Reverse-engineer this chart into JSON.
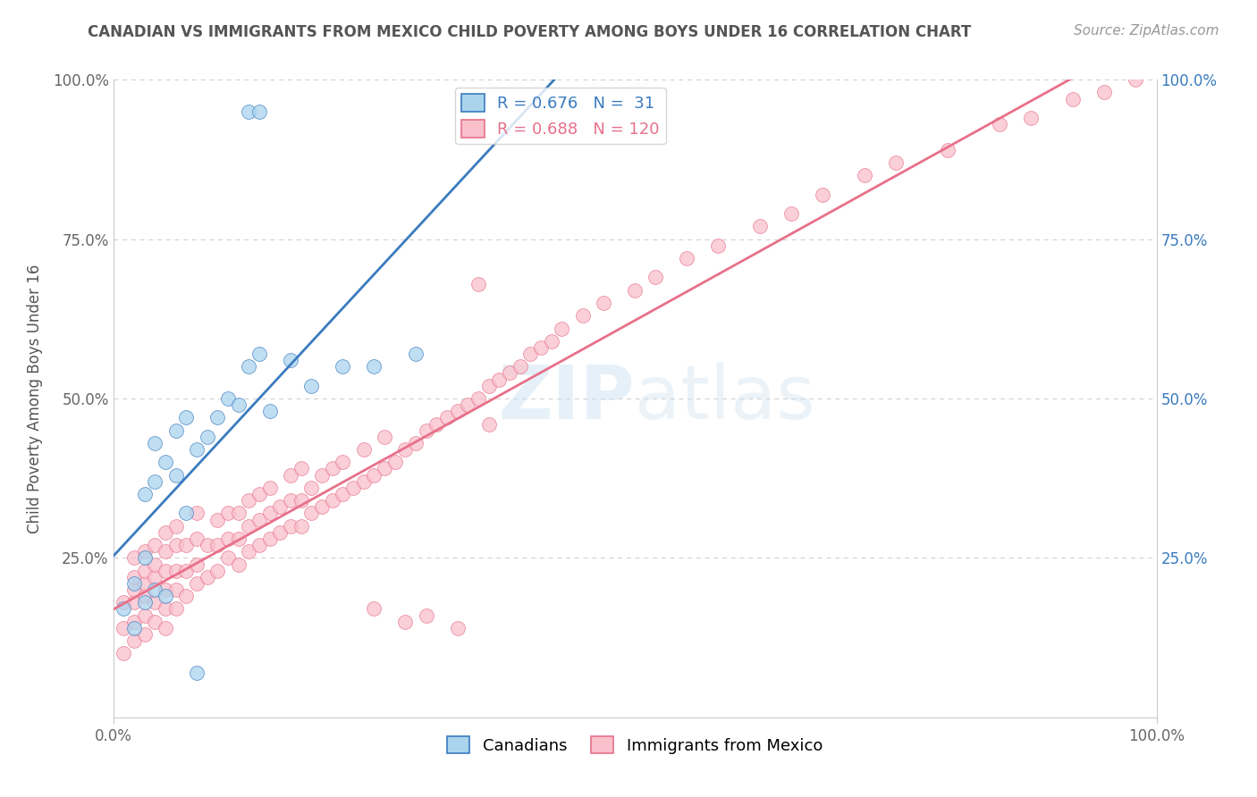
{
  "title": "CANADIAN VS IMMIGRANTS FROM MEXICO CHILD POVERTY AMONG BOYS UNDER 16 CORRELATION CHART",
  "source": "Source: ZipAtlas.com",
  "ylabel": "Child Poverty Among Boys Under 16",
  "watermark": "ZIPAtlas",
  "xlim": [
    0,
    1.0
  ],
  "ylim": [
    0,
    1.0
  ],
  "legend_r_canadian": "0.676",
  "legend_n_canadian": "31",
  "legend_r_mexico": "0.688",
  "legend_n_mexico": "120",
  "canadian_color": "#aad4ee",
  "mexico_color": "#f9c0cb",
  "canadian_line_color": "#3a7bbf",
  "mexico_line_color": "#e8708a",
  "background_color": "#ffffff",
  "grid_color": "#cccccc",
  "canadians_x": [
    0.01,
    0.02,
    0.02,
    0.03,
    0.03,
    0.03,
    0.04,
    0.04,
    0.04,
    0.05,
    0.05,
    0.06,
    0.06,
    0.07,
    0.07,
    0.08,
    0.09,
    0.1,
    0.11,
    0.12,
    0.13,
    0.14,
    0.15,
    0.17,
    0.19,
    0.22,
    0.25,
    0.29,
    0.13,
    0.14,
    0.08
  ],
  "canadians_y": [
    0.17,
    0.14,
    0.21,
    0.18,
    0.25,
    0.35,
    0.2,
    0.37,
    0.43,
    0.19,
    0.4,
    0.38,
    0.45,
    0.32,
    0.47,
    0.42,
    0.44,
    0.47,
    0.5,
    0.49,
    0.95,
    0.95,
    0.48,
    0.56,
    0.52,
    0.55,
    0.55,
    0.57,
    0.55,
    0.57,
    0.07
  ],
  "mexico_x": [
    0.01,
    0.01,
    0.01,
    0.02,
    0.02,
    0.02,
    0.02,
    0.02,
    0.02,
    0.03,
    0.03,
    0.03,
    0.03,
    0.03,
    0.03,
    0.04,
    0.04,
    0.04,
    0.04,
    0.04,
    0.05,
    0.05,
    0.05,
    0.05,
    0.05,
    0.05,
    0.06,
    0.06,
    0.06,
    0.06,
    0.06,
    0.07,
    0.07,
    0.07,
    0.08,
    0.08,
    0.08,
    0.08,
    0.09,
    0.09,
    0.1,
    0.1,
    0.1,
    0.11,
    0.11,
    0.11,
    0.12,
    0.12,
    0.12,
    0.13,
    0.13,
    0.13,
    0.14,
    0.14,
    0.14,
    0.15,
    0.15,
    0.15,
    0.16,
    0.16,
    0.17,
    0.17,
    0.17,
    0.18,
    0.18,
    0.18,
    0.19,
    0.19,
    0.2,
    0.2,
    0.21,
    0.21,
    0.22,
    0.22,
    0.23,
    0.24,
    0.24,
    0.25,
    0.26,
    0.26,
    0.27,
    0.28,
    0.29,
    0.3,
    0.31,
    0.32,
    0.33,
    0.34,
    0.35,
    0.36,
    0.37,
    0.38,
    0.39,
    0.4,
    0.41,
    0.42,
    0.43,
    0.45,
    0.47,
    0.5,
    0.52,
    0.55,
    0.58,
    0.62,
    0.65,
    0.68,
    0.72,
    0.75,
    0.8,
    0.85,
    0.88,
    0.92,
    0.95,
    0.98,
    0.35,
    0.36,
    0.3,
    0.25,
    0.28,
    0.33
  ],
  "mexico_y": [
    0.1,
    0.14,
    0.18,
    0.12,
    0.15,
    0.18,
    0.2,
    0.22,
    0.25,
    0.13,
    0.16,
    0.19,
    0.21,
    0.23,
    0.26,
    0.15,
    0.18,
    0.22,
    0.24,
    0.27,
    0.14,
    0.17,
    0.2,
    0.23,
    0.26,
    0.29,
    0.17,
    0.2,
    0.23,
    0.27,
    0.3,
    0.19,
    0.23,
    0.27,
    0.21,
    0.24,
    0.28,
    0.32,
    0.22,
    0.27,
    0.23,
    0.27,
    0.31,
    0.25,
    0.28,
    0.32,
    0.24,
    0.28,
    0.32,
    0.26,
    0.3,
    0.34,
    0.27,
    0.31,
    0.35,
    0.28,
    0.32,
    0.36,
    0.29,
    0.33,
    0.3,
    0.34,
    0.38,
    0.3,
    0.34,
    0.39,
    0.32,
    0.36,
    0.33,
    0.38,
    0.34,
    0.39,
    0.35,
    0.4,
    0.36,
    0.37,
    0.42,
    0.38,
    0.39,
    0.44,
    0.4,
    0.42,
    0.43,
    0.45,
    0.46,
    0.47,
    0.48,
    0.49,
    0.5,
    0.52,
    0.53,
    0.54,
    0.55,
    0.57,
    0.58,
    0.59,
    0.61,
    0.63,
    0.65,
    0.67,
    0.69,
    0.72,
    0.74,
    0.77,
    0.79,
    0.82,
    0.85,
    0.87,
    0.89,
    0.93,
    0.94,
    0.97,
    0.98,
    1.0,
    0.68,
    0.46,
    0.16,
    0.17,
    0.15,
    0.14
  ],
  "title_fontsize": 12,
  "source_fontsize": 11,
  "axis_fontsize": 12,
  "ylabel_fontsize": 12,
  "legend_fontsize": 13,
  "watermark_fontsize": 60,
  "scatter_size": 130,
  "scatter_alpha": 0.75,
  "line_width": 2.0
}
